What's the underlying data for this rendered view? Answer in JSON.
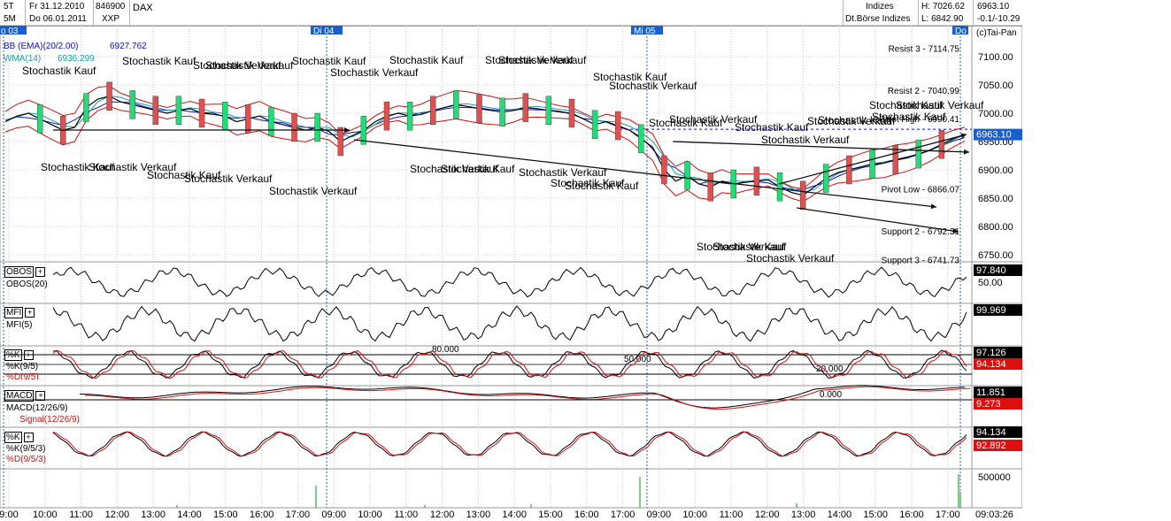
{
  "header": {
    "interval_a": "5T",
    "interval_b": "5M",
    "date_from": "Fr 31.12.2010",
    "date_to": "Do 06.01.2011",
    "wkn": "846900",
    "symbol": "DAX",
    "exchange": "XXP",
    "category": "Indizes",
    "source": "Dt.Börse Indizes",
    "high": "H: 7026.62",
    "low": "L: 6842.90",
    "last": "6963.10",
    "change": "-0.1/-10.29",
    "copyright": "(c)Tai-Pan"
  },
  "day_markers": [
    "o 03",
    "Di 04",
    "Mi 05",
    "Do"
  ],
  "time_labels": [
    "9:00",
    "10:00",
    "11:00",
    "12:00",
    "13:00",
    "14:00",
    "15:00",
    "16:00",
    "17:00",
    "09:00",
    "10:00",
    "11:00",
    "12:00",
    "13:00",
    "14:00",
    "15:00",
    "16:00",
    "17:00",
    "09:00",
    "10:00",
    "11:00",
    "12:00",
    "13:00",
    "14:00",
    "15:00",
    "16:00",
    "17:00"
  ],
  "current_time": "09:03:26",
  "colors": {
    "up_bar": "#22dd77",
    "down_bar": "#e05050",
    "price": "#000000",
    "bb": "#d01010",
    "wma": "#1aa0a0",
    "ema": "#1010cc",
    "signal": "#dd1010",
    "badge": "#1a5fd0",
    "volume": "#2aaa3a"
  },
  "price_panel": {
    "legend_bb": "BB (EMA)(20/2.00)",
    "legend_bb_value": "6927.762",
    "legend_wma": "WMA(14)",
    "legend_wma_value": "6936.299",
    "last_badge": "6963.10",
    "levels": [
      {
        "label": "Resist 3 - 7114.75",
        "value": 7114.75
      },
      {
        "label": "Resist 2 - 7040.99",
        "value": 7040.99
      },
      {
        "label": "Pivot High - 6990.41",
        "value": 6990.41
      },
      {
        "label": "Pivot Low - 6866.07",
        "value": 6866.07
      },
      {
        "label": "Support 2 - 6792.31",
        "value": 6792.31
      },
      {
        "label": "Support 3 - 6741.73",
        "value": 6741.73
      }
    ],
    "annotations": [
      "Stochastik Kauf",
      "Stochastik Kauf",
      "Stochastik Verkauf",
      "Stochastik Verkauf",
      "Stochastik Kauf",
      "Stochastik Verkauf",
      "Stochastik Kauf",
      "Stochastik Verkauf",
      "Stochastik Verkauf",
      "Stochastik Kauf",
      "Stochastik Verkauf",
      "Stochastik Verkauf",
      "Stochastik Kauf",
      "Stochastik Verkauf",
      "Stochastik Kauf",
      "Stochastik Kauf",
      "Stochastik Verkauf",
      "Stochastik Kauf",
      "Stochastik Verkauf",
      "Stochastik Verkauf",
      "Stochastik Verkauf",
      "Stochastik Kauf",
      "Stochastik Verkauf",
      "Stochastik Kauf",
      "Stochastik Kauf",
      "Stochastik Verkauf",
      "Stochastik Kauf",
      "Stochastik Verkauf",
      "Stochastik Kauf",
      "Stochastik Verkauf",
      "Stochastik Kauf",
      "Stochastik Verkauf",
      "Stochastik Kauf"
    ]
  },
  "indicators": {
    "obos": {
      "name": "OBOS",
      "sub": "OBOS(20)",
      "value": "97.840",
      "mid": "50.00"
    },
    "mfi": {
      "name": "MFI",
      "sub": "MFI(5)",
      "value": "99.969"
    },
    "stoch1": {
      "name": "%K",
      "sub1": "%K(9/5)",
      "sub2": "%D(9/5)",
      "value1": "97.126",
      "value2": "94.134",
      "lvl80": "80.000",
      "lvl50": "50.000",
      "lvl20": "20.000"
    },
    "macd": {
      "name": "MACD",
      "sub1": "MACD(12/26/9)",
      "sub2": "Signal(12/26/9)",
      "value1": "11.851",
      "value2": "9.273",
      "zero": "0.000"
    },
    "stoch2": {
      "name": "%K",
      "sub1": "%K(9/5/3)",
      "sub2": "%D(9/5/3)",
      "value1": "94.134",
      "value2": "92.892"
    },
    "volume": {
      "scale": "500000"
    }
  },
  "chart_data": {
    "type": "line",
    "title": "DAX",
    "xlabel": "",
    "ylabel": "",
    "ylim": [
      6700,
      7150
    ],
    "yticks": [
      7100.0,
      7050.0,
      7000.0,
      6950.0,
      6900.0,
      6850.0,
      6800.0,
      6750.0
    ],
    "ytick_labels": [
      "7100.00",
      "7050.00",
      "7000.00",
      "6950.00",
      "6900.00",
      "6850.00",
      "6800.00",
      "6750.00"
    ],
    "x_day_labels": [
      "o 03",
      "Di 04",
      "Mi 05",
      "Do"
    ],
    "series": [
      {
        "values": [
          6985,
          6995,
          7000,
          6990,
          6980,
          6970,
          6975,
          7010,
          7025,
          7030,
          7020,
          7015,
          7010,
          7005,
          7000,
          7005,
          7008,
          7000,
          6998,
          6995,
          6985,
          6990,
          6995,
          6985,
          6980,
          6975,
          6970,
          6975,
          6968,
          6950,
          6960,
          6970,
          6985,
          6995,
          7000,
          6995,
          6998,
          7005,
          7010,
          7015,
          7012,
          7008,
          7005,
          7002,
          7005,
          7010,
          7008,
          7005,
          7002,
          7000,
          6990,
          6980,
          6985,
          6978,
          6970,
          6955,
          6940,
          6900,
          6880,
          6890,
          6875,
          6870,
          6880,
          6875,
          6878,
          6880,
          6882,
          6870,
          6860,
          6855,
          6870,
          6885,
          6895,
          6900,
          6905,
          6910,
          6912,
          6918,
          6922,
          6928,
          6935,
          6945,
          6955,
          6963
        ]
      }
    ]
  }
}
